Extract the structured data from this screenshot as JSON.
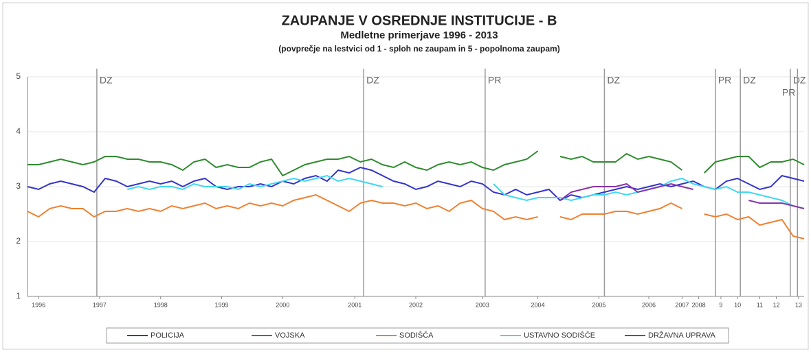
{
  "chart_data": {
    "type": "line",
    "title": "ZAUPANJE V OSREDNJE INSTITUCIJE - B",
    "subtitle": "Medletne primerjave 1996 - 2013",
    "note": "(povprečje na lestvici od 1 - sploh ne zaupam in 5 - popolnoma zaupam)",
    "x": [
      0,
      2,
      4,
      6,
      8,
      10,
      12,
      14,
      16,
      18,
      20,
      22,
      24,
      26,
      28,
      30,
      32,
      34,
      36,
      38,
      40,
      42,
      44,
      46,
      48,
      50,
      52,
      54,
      56,
      58,
      60,
      62,
      64,
      66,
      68,
      70,
      72,
      74,
      76,
      78,
      80,
      82,
      84,
      86,
      88,
      90,
      92,
      94,
      96,
      98,
      100,
      102,
      104,
      106,
      108,
      110,
      112,
      114,
      116,
      118,
      120,
      122,
      124,
      126,
      128,
      130,
      132,
      134,
      136,
      138,
      140
    ],
    "xlim": [
      0,
      140
    ],
    "xticks": [
      {
        "value": 2,
        "label": "1996"
      },
      {
        "value": 13,
        "label": "1997"
      },
      {
        "value": 24,
        "label": "1998"
      },
      {
        "value": 35,
        "label": "1999"
      },
      {
        "value": 46,
        "label": "2000"
      },
      {
        "value": 59,
        "label": "2001"
      },
      {
        "value": 70,
        "label": "2002"
      },
      {
        "value": 82,
        "label": "2003"
      },
      {
        "value": 92,
        "label": "2004"
      },
      {
        "value": 103,
        "label": "2005"
      },
      {
        "value": 112,
        "label": "2006"
      },
      {
        "value": 118,
        "label": "2007"
      },
      {
        "value": 121,
        "label": "2008"
      },
      {
        "value": 125,
        "label": "9"
      },
      {
        "value": 128,
        "label": "10"
      },
      {
        "value": 132,
        "label": "11"
      },
      {
        "value": 135,
        "label": "12"
      },
      {
        "value": 139,
        "label": "13"
      }
    ],
    "ylim": [
      1,
      5
    ],
    "yticks": [
      1,
      2,
      3,
      4,
      5
    ],
    "grid": true,
    "legend": "bottom",
    "events": [
      {
        "x": 12.5,
        "label": "DZ"
      },
      {
        "x": 60.6,
        "label": "DZ"
      },
      {
        "x": 82.5,
        "label": "PR"
      },
      {
        "x": 104,
        "label": "DZ"
      },
      {
        "x": 124,
        "label": "PR"
      },
      {
        "x": 128.5,
        "label": "DZ"
      },
      {
        "x": 137.5,
        "label": "DZ"
      },
      {
        "x": 138.8,
        "label": "PR"
      }
    ],
    "series": [
      {
        "name": "POLICIJA",
        "color": "#3333cc",
        "values": [
          3.0,
          2.95,
          3.05,
          3.1,
          3.05,
          3.0,
          2.9,
          3.15,
          3.1,
          3.0,
          3.05,
          3.1,
          3.05,
          3.1,
          3.0,
          3.1,
          3.15,
          3.0,
          2.95,
          3.0,
          3.0,
          3.05,
          3.0,
          3.1,
          3.05,
          3.15,
          3.2,
          3.1,
          3.3,
          3.25,
          3.35,
          3.3,
          3.2,
          3.1,
          3.05,
          2.95,
          3.0,
          3.1,
          3.05,
          3.0,
          3.1,
          3.05,
          2.9,
          2.85,
          2.95,
          2.85,
          2.9,
          2.95,
          2.75,
          2.85,
          2.8,
          2.85,
          2.9,
          2.95,
          3.0,
          2.95,
          3.0,
          3.05,
          3.0,
          3.05,
          3.1,
          3.0,
          2.95,
          3.1,
          3.15,
          3.05,
          2.95,
          3.0,
          3.2,
          3.15,
          3.1
        ]
      },
      {
        "name": "VOJSKA",
        "color": "#2e8b2e",
        "values": [
          3.4,
          3.4,
          3.45,
          3.5,
          3.45,
          3.4,
          3.45,
          3.55,
          3.55,
          3.5,
          3.5,
          3.45,
          3.45,
          3.4,
          3.3,
          3.45,
          3.5,
          3.35,
          3.4,
          3.35,
          3.35,
          3.45,
          3.5,
          3.2,
          3.3,
          3.4,
          3.45,
          3.5,
          3.5,
          3.55,
          3.45,
          3.5,
          3.4,
          3.35,
          3.45,
          3.35,
          3.3,
          3.4,
          3.45,
          3.4,
          3.45,
          3.35,
          3.3,
          3.4,
          3.45,
          3.5,
          3.65,
          null,
          3.55,
          3.5,
          3.55,
          3.45,
          3.45,
          3.45,
          3.6,
          3.5,
          3.55,
          3.5,
          3.45,
          3.3,
          null,
          3.25,
          3.45,
          3.5,
          3.55,
          3.55,
          3.35,
          3.45,
          3.45,
          3.5,
          3.4
        ]
      },
      {
        "name": "SODIŠČA",
        "color": "#f08030",
        "values": [
          2.55,
          2.45,
          2.6,
          2.65,
          2.6,
          2.6,
          2.45,
          2.55,
          2.55,
          2.6,
          2.55,
          2.6,
          2.55,
          2.65,
          2.6,
          2.65,
          2.7,
          2.6,
          2.65,
          2.6,
          2.7,
          2.65,
          2.7,
          2.65,
          2.75,
          2.8,
          2.85,
          2.75,
          2.65,
          2.55,
          2.7,
          2.75,
          2.7,
          2.7,
          2.65,
          2.7,
          2.6,
          2.65,
          2.55,
          2.7,
          2.75,
          2.6,
          2.55,
          2.4,
          2.45,
          2.4,
          2.45,
          null,
          2.45,
          2.4,
          2.5,
          2.5,
          2.5,
          2.55,
          2.55,
          2.5,
          2.55,
          2.6,
          2.7,
          2.6,
          null,
          2.5,
          2.45,
          2.5,
          2.4,
          2.45,
          2.3,
          2.35,
          2.4,
          2.1,
          2.05
        ]
      },
      {
        "name": "USTAVNO SODIŠČE",
        "color": "#40d8f0",
        "values": [
          null,
          null,
          null,
          null,
          null,
          null,
          null,
          null,
          null,
          2.95,
          3.0,
          2.95,
          3.0,
          3.0,
          2.95,
          3.05,
          3.0,
          3.0,
          3.0,
          2.95,
          3.05,
          3.0,
          3.05,
          3.1,
          3.15,
          3.1,
          3.15,
          3.2,
          3.1,
          3.15,
          3.1,
          3.05,
          3.0,
          null,
          null,
          null,
          null,
          null,
          null,
          null,
          null,
          null,
          3.05,
          2.85,
          2.8,
          2.75,
          2.8,
          2.8,
          2.8,
          2.75,
          2.8,
          2.85,
          2.85,
          2.9,
          2.85,
          2.9,
          2.95,
          3.0,
          3.1,
          3.15,
          3.05,
          3.0,
          2.95,
          3.0,
          2.9,
          2.9,
          2.85,
          2.8,
          2.75,
          2.65,
          2.6
        ]
      },
      {
        "name": "DRŽAVNA UPRAVA",
        "color": "#8833aa",
        "values": [
          null,
          null,
          null,
          null,
          null,
          null,
          null,
          null,
          null,
          null,
          null,
          null,
          null,
          null,
          null,
          null,
          null,
          null,
          null,
          null,
          null,
          null,
          null,
          null,
          null,
          null,
          null,
          null,
          null,
          null,
          null,
          null,
          null,
          null,
          null,
          null,
          null,
          null,
          null,
          null,
          null,
          null,
          null,
          null,
          null,
          null,
          null,
          null,
          2.75,
          2.9,
          2.95,
          3.0,
          3.0,
          3.0,
          3.05,
          2.9,
          2.95,
          3.0,
          3.05,
          3.0,
          2.95,
          null,
          null,
          null,
          null,
          2.75,
          2.7,
          2.7,
          2.7,
          2.65,
          2.6
        ]
      }
    ]
  }
}
